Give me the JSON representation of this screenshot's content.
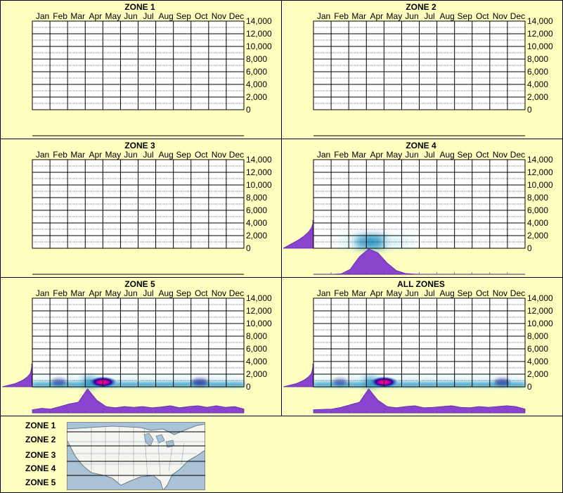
{
  "months": [
    "Jan",
    "Feb",
    "Mar",
    "Apr",
    "May",
    "Jun",
    "Jul",
    "Aug",
    "Sep",
    "Oct",
    "Nov",
    "Dec"
  ],
  "yticks": [
    "14,000",
    "12,000",
    "10,000",
    "8,000",
    "6,000",
    "4,000",
    "2,000",
    "0"
  ],
  "colors": {
    "background": "#ffffc0",
    "plot": "#ffffff",
    "grid": "#000000",
    "curve": "#8844cc",
    "curve_stroke": "#6622aa",
    "density_low": "#bfeaf2",
    "density_mid": "#1f8fc0",
    "density_high": "#000080",
    "peak": "#ff00aa"
  },
  "chart_data": [
    {
      "type": "heatmap",
      "title": "ZONE 1",
      "y_range": [
        0,
        14000
      ],
      "has_data": false
    },
    {
      "type": "heatmap",
      "title": "ZONE 2",
      "y_range": [
        0,
        14000
      ],
      "has_data": false
    },
    {
      "type": "heatmap",
      "title": "ZONE 3",
      "y_range": [
        0,
        14000
      ],
      "has_data": false
    },
    {
      "type": "heatmap",
      "title": "ZONE 4",
      "y_range": [
        0,
        14000
      ],
      "has_data": true,
      "band_top": 2000,
      "month_profile": [
        0,
        0,
        0,
        0.02,
        0.2,
        0.7,
        1.0,
        0.85,
        0.45,
        0.15,
        0.03,
        0.01,
        0,
        0,
        0,
        0,
        0,
        0,
        0,
        0,
        0,
        0,
        0,
        0
      ],
      "elevation_profile": [
        1.0,
        0.75,
        0.5,
        0.3,
        0.15,
        0.05,
        0,
        0
      ],
      "hotspots": []
    },
    {
      "type": "heatmap",
      "title": "ZONE 5",
      "y_range": [
        0,
        14000
      ],
      "has_data": true,
      "band_top": 1500,
      "month_profile": [
        0.12,
        0.18,
        0.15,
        0.25,
        0.35,
        0.42,
        0.95,
        0.5,
        0.25,
        0.2,
        0.25,
        0.22,
        0.25,
        0.2,
        0.23,
        0.28,
        0.2,
        0.25,
        0.28,
        0.22,
        0.28,
        0.22,
        0.25,
        0.15
      ],
      "elevation_profile": [
        1.0,
        0.55,
        0.3,
        0.15,
        0.05,
        0.02,
        0,
        0
      ],
      "hotspots": [
        {
          "x": 4.0,
          "y": 200,
          "intensity": 1.0
        },
        {
          "x": 9.5,
          "y": 200,
          "intensity": 0.4
        },
        {
          "x": 1.5,
          "y": 200,
          "intensity": 0.25
        }
      ]
    },
    {
      "type": "heatmap",
      "title": "ALL ZONES",
      "y_range": [
        0,
        14000
      ],
      "has_data": true,
      "band_top": 1500,
      "month_profile": [
        0.12,
        0.14,
        0.15,
        0.22,
        0.32,
        0.42,
        0.95,
        0.5,
        0.25,
        0.2,
        0.25,
        0.28,
        0.2,
        0.22,
        0.25,
        0.28,
        0.22,
        0.2,
        0.25,
        0.22,
        0.25,
        0.28,
        0.25,
        0.15
      ],
      "elevation_profile": [
        1.0,
        0.55,
        0.3,
        0.15,
        0.05,
        0.02,
        0,
        0
      ],
      "hotspots": [
        {
          "x": 4.0,
          "y": 200,
          "intensity": 1.0
        },
        {
          "x": 10.7,
          "y": 200,
          "intensity": 0.35
        },
        {
          "x": 1.5,
          "y": 200,
          "intensity": 0.2
        }
      ]
    }
  ],
  "legend": {
    "zones": [
      "ZONE 1",
      "ZONE 2",
      "ZONE 3",
      "ZONE 4",
      "ZONE 5"
    ],
    "map": "united-states-zone-map"
  }
}
